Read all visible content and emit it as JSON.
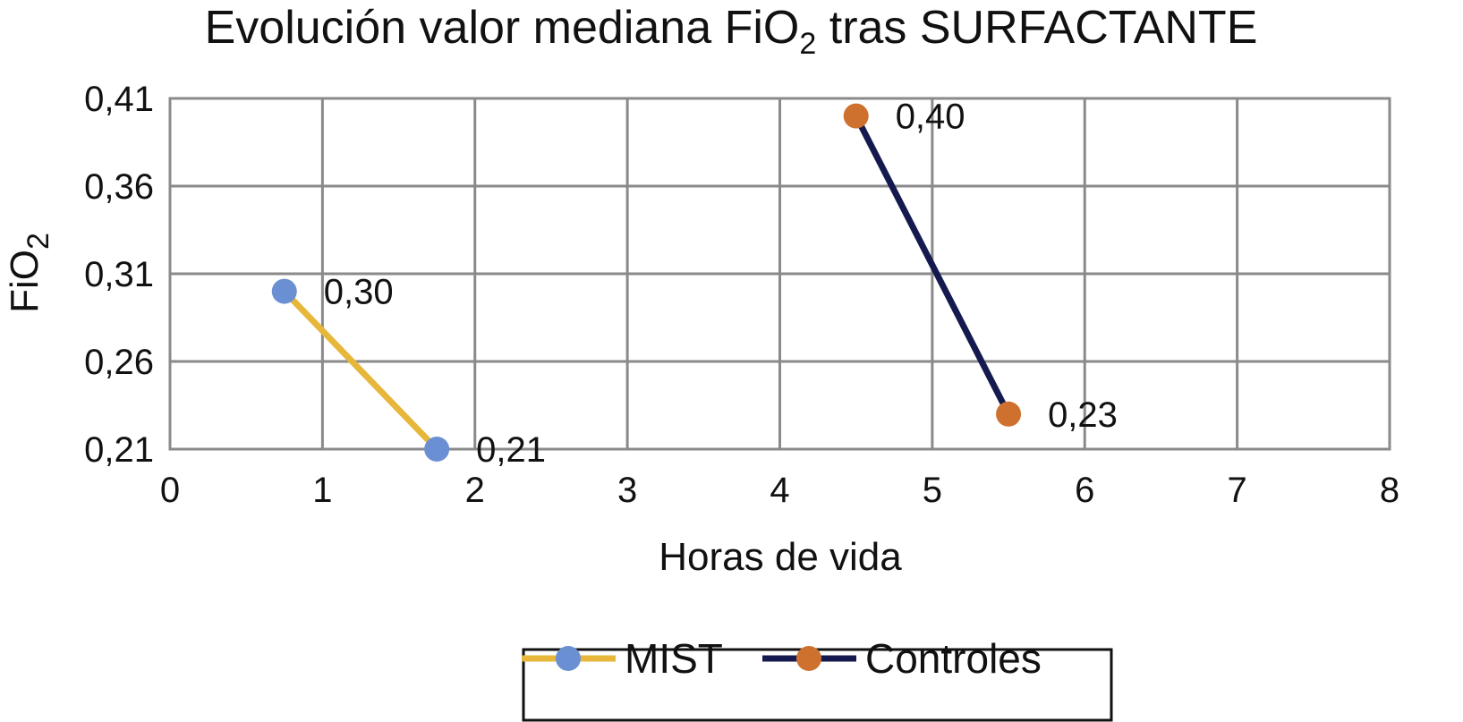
{
  "chart_data": {
    "type": "line",
    "title": {
      "text_before": "Evolución valor mediana FiO",
      "subscript": "2",
      "text_after": " tras SURFACTANTE"
    },
    "xlabel": "Horas de vida",
    "ylabel": {
      "text": "FiO",
      "subscript": "2"
    },
    "xlim": [
      0,
      8
    ],
    "ylim": [
      0.21,
      0.41
    ],
    "x_ticks": [
      {
        "value": 0,
        "label": "0"
      },
      {
        "value": 1,
        "label": "1"
      },
      {
        "value": 2,
        "label": "2"
      },
      {
        "value": 3,
        "label": "3"
      },
      {
        "value": 4,
        "label": "4"
      },
      {
        "value": 5,
        "label": "5"
      },
      {
        "value": 6,
        "label": "6"
      },
      {
        "value": 7,
        "label": "7"
      },
      {
        "value": 8,
        "label": "8"
      }
    ],
    "y_ticks": [
      {
        "value": 0.21,
        "label": "0,21"
      },
      {
        "value": 0.26,
        "label": "0,26"
      },
      {
        "value": 0.31,
        "label": "0,31"
      },
      {
        "value": 0.36,
        "label": "0,36"
      },
      {
        "value": 0.41,
        "label": "0,41"
      }
    ],
    "grid": true,
    "legend_position": "bottom",
    "series": [
      {
        "name": "MIST",
        "line_color": "#E6B73A",
        "marker_color": "#6A8FD3",
        "points": [
          {
            "x": 0.75,
            "y": 0.3,
            "label": "0,30"
          },
          {
            "x": 1.75,
            "y": 0.21,
            "label": "0,21"
          }
        ]
      },
      {
        "name": "Controles",
        "line_color": "#141A4E",
        "marker_color": "#CF712E",
        "points": [
          {
            "x": 4.5,
            "y": 0.4,
            "label": "0,40"
          },
          {
            "x": 5.5,
            "y": 0.23,
            "label": "0,23"
          }
        ]
      }
    ]
  }
}
